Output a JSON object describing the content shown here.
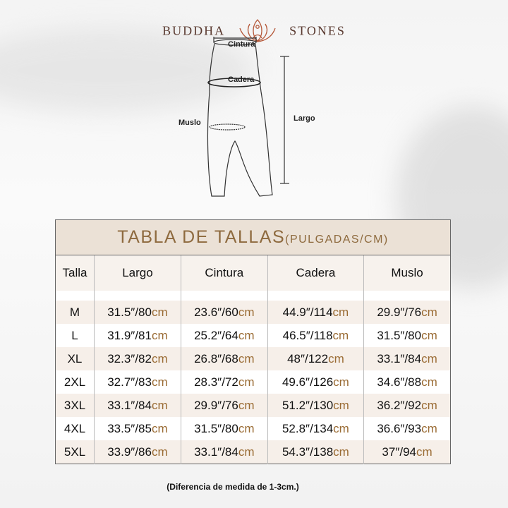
{
  "brand": {
    "left": "BUDDHA",
    "right": "STONES"
  },
  "diagram": {
    "cintura": "Cintura",
    "cadera": "Cadera",
    "muslo": "Muslo",
    "largo": "Largo"
  },
  "table": {
    "title": "TABLA DE TALLAS",
    "title_unit": "(PULGADAS/CM)",
    "headers": [
      "Talla",
      "Largo",
      "Cintura",
      "Cadera",
      "Muslo"
    ],
    "rows": [
      {
        "size": "M",
        "cells": [
          [
            "31.5″/80",
            "cm"
          ],
          [
            "23.6″/60",
            "cm"
          ],
          [
            "44.9″/114",
            "cm"
          ],
          [
            "29.9″/76",
            "cm"
          ]
        ]
      },
      {
        "size": "L",
        "cells": [
          [
            "31.9″/81",
            "cm"
          ],
          [
            "25.2″/64",
            "cm"
          ],
          [
            "46.5″/118",
            "cm"
          ],
          [
            "31.5″/80",
            "cm"
          ]
        ]
      },
      {
        "size": "XL",
        "cells": [
          [
            "32.3″/82",
            "cm"
          ],
          [
            "26.8″/68",
            "cm"
          ],
          [
            "48″/122",
            "cm"
          ],
          [
            "33.1″/84",
            "cm"
          ]
        ]
      },
      {
        "size": "2XL",
        "cells": [
          [
            "32.7″/83",
            "cm"
          ],
          [
            "28.3″/72",
            "cm"
          ],
          [
            "49.6″/126",
            "cm"
          ],
          [
            "34.6″/88",
            "cm"
          ]
        ]
      },
      {
        "size": "3XL",
        "cells": [
          [
            "33.1″/84",
            "cm"
          ],
          [
            "29.9″/76",
            "cm"
          ],
          [
            "51.2″/130",
            "cm"
          ],
          [
            "36.2″/92",
            "cm"
          ]
        ]
      },
      {
        "size": "4XL",
        "cells": [
          [
            "33.5″/85",
            "cm"
          ],
          [
            "31.5″/80",
            "cm"
          ],
          [
            "52.8″/134",
            "cm"
          ],
          [
            "36.6″/93",
            "cm"
          ]
        ]
      },
      {
        "size": "5XL",
        "cells": [
          [
            "33.9″/86",
            "cm"
          ],
          [
            "33.1″/84",
            "cm"
          ],
          [
            "54.3″/138",
            "cm"
          ],
          [
            "37″/94",
            "cm"
          ]
        ]
      }
    ]
  },
  "note": "(Diferencia de medida de 1-3cm.)",
  "colors": {
    "title": "#8e6a3e",
    "cm": "#9a6b33",
    "header_bg": "#ebe1d6",
    "row_alt": "#f6efe9"
  }
}
